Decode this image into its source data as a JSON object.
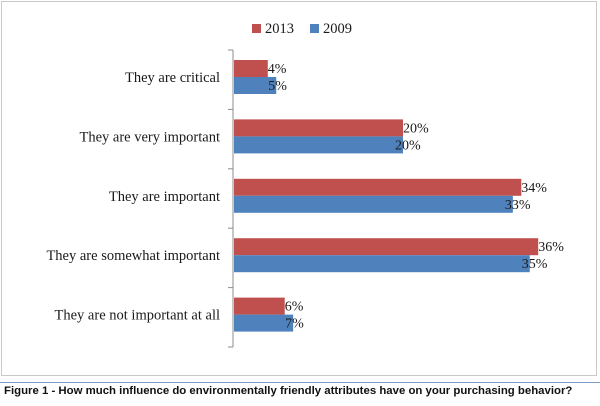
{
  "chart_data": {
    "type": "bar",
    "orientation": "horizontal",
    "categories": [
      "They are critical",
      "They are very important",
      "They are important",
      "They are somewhat important",
      "They are not important at all"
    ],
    "series": [
      {
        "name": "2013",
        "color": "#c0504d",
        "values": [
          4,
          20,
          34,
          36,
          6
        ],
        "labels": [
          "4%",
          "20%",
          "34%",
          "36%",
          "6%"
        ]
      },
      {
        "name": "2009",
        "color": "#4f81bd",
        "values": [
          5,
          20,
          33,
          35,
          7
        ],
        "labels": [
          "5%",
          "20%",
          "33%",
          "35%",
          "7%"
        ]
      }
    ],
    "unit": "%",
    "xlim": [
      0,
      40
    ],
    "grid": false,
    "legend": "top-center",
    "caption": "Figure 1 - How much influence do environmentally friendly attributes have on your purchasing behavior?"
  }
}
